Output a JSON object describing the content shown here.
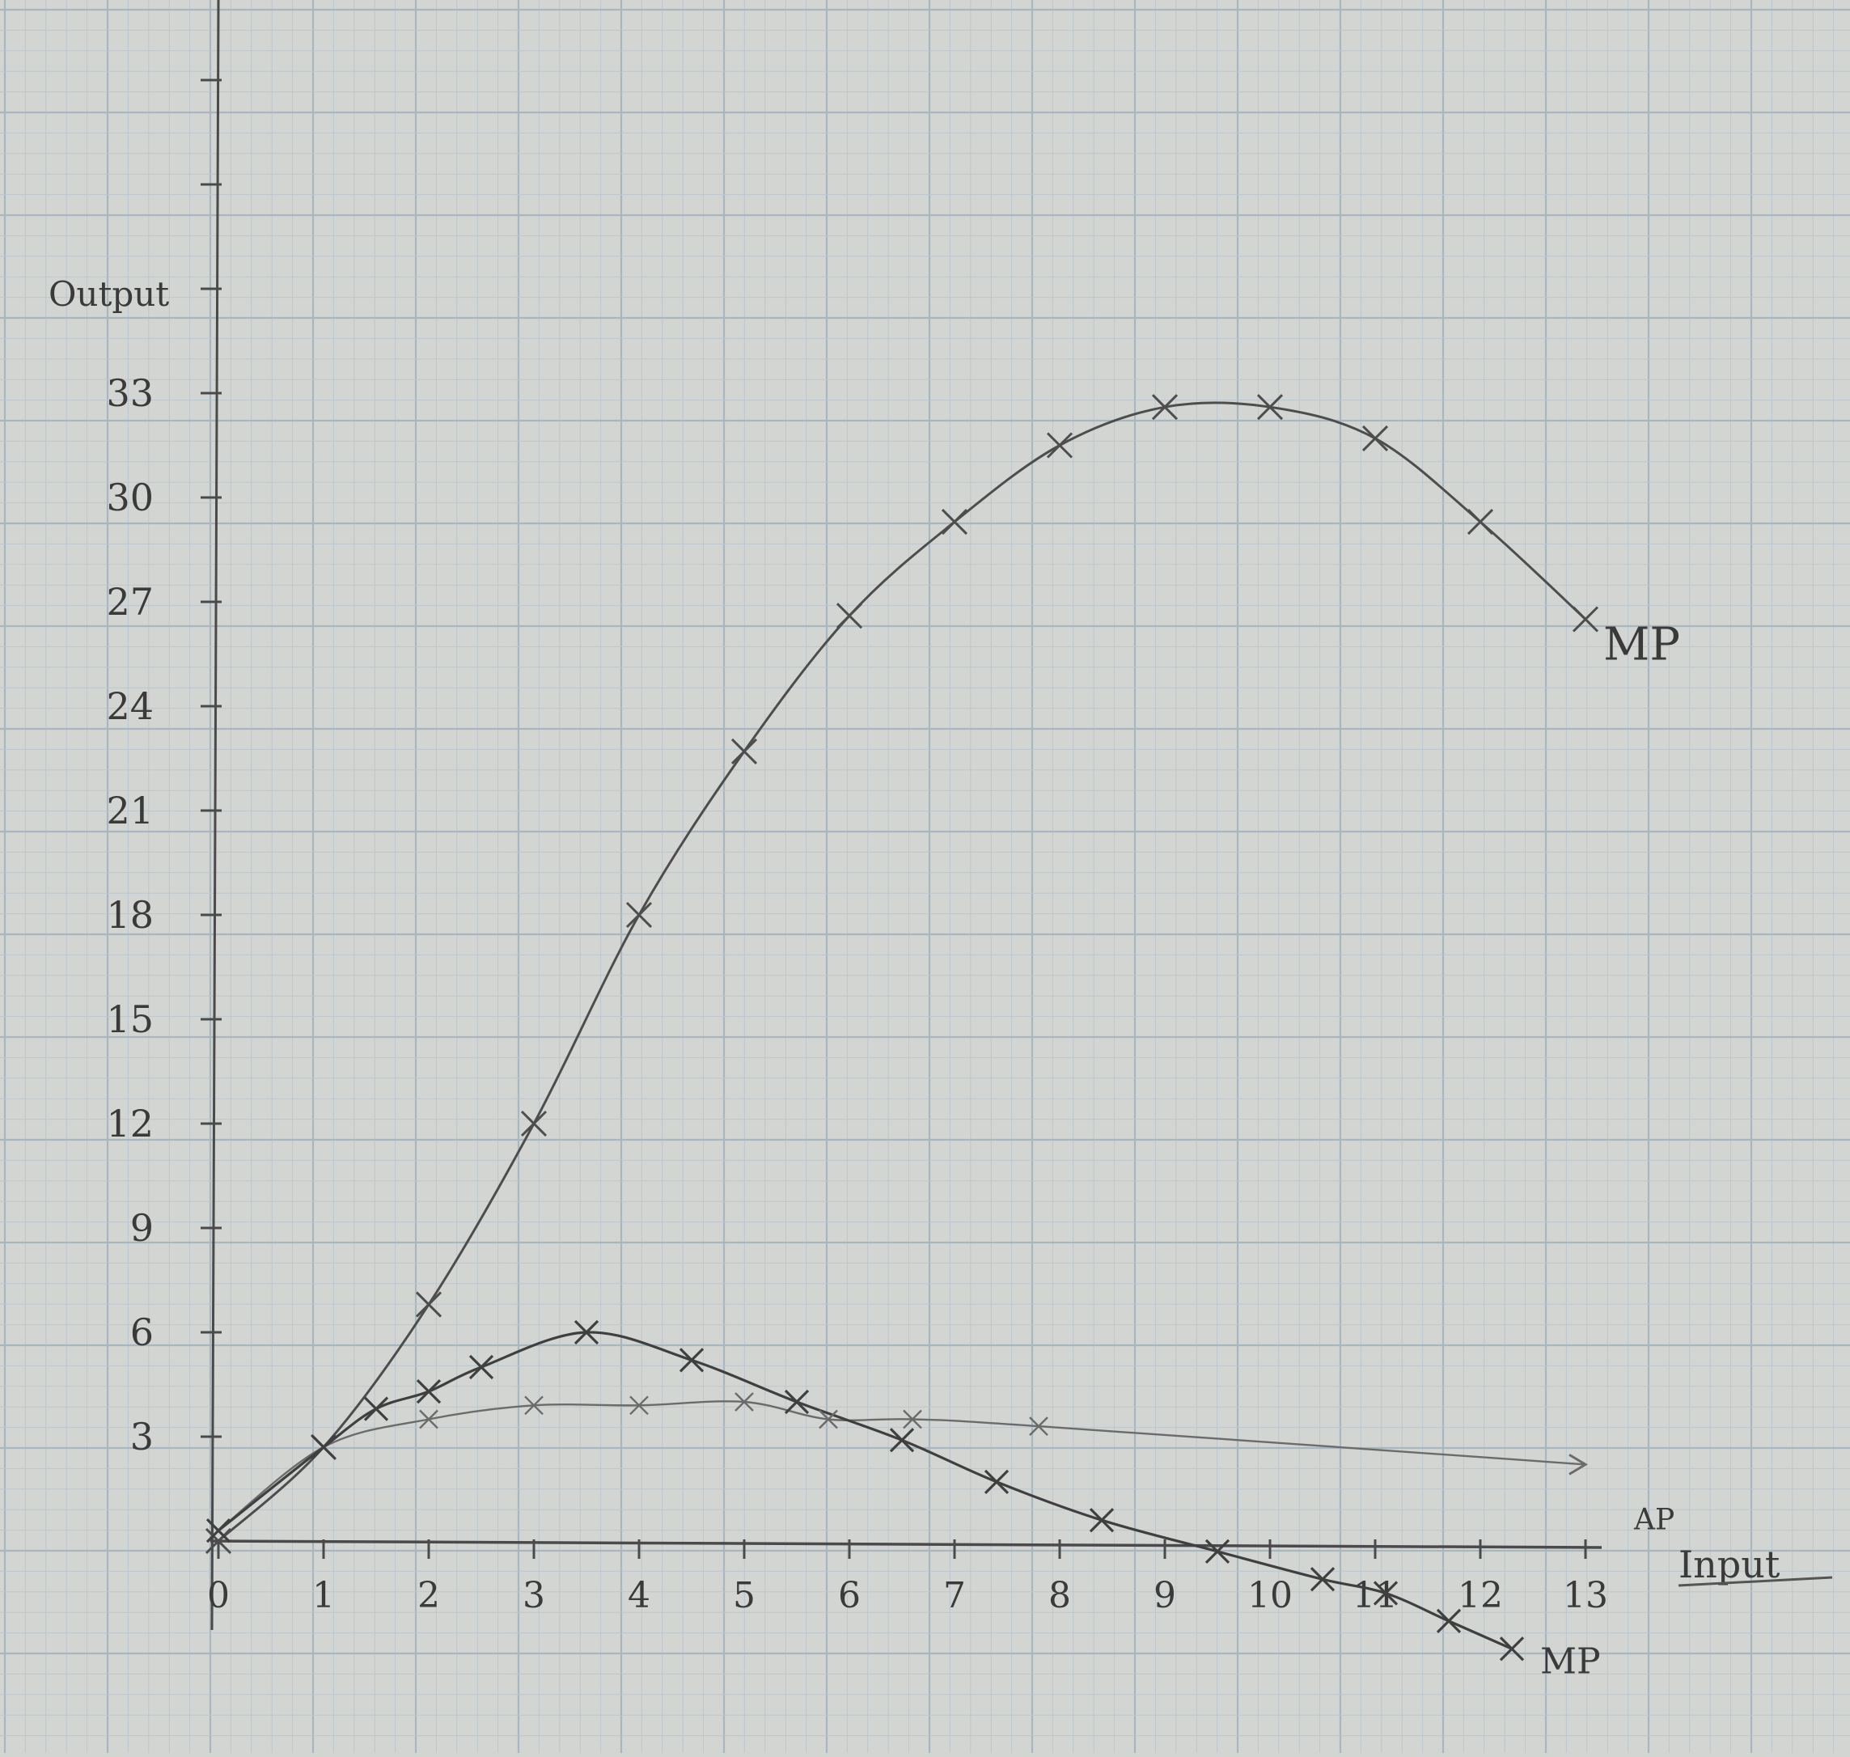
{
  "chart_data": {
    "type": "line",
    "title": "",
    "xlabel": "Input",
    "ylabel": "Output",
    "xlim": [
      0,
      13
    ],
    "ylim": [
      -3,
      33
    ],
    "x_ticks": [
      "0",
      "1",
      "2",
      "3",
      "4",
      "5",
      "6",
      "7",
      "8",
      "9",
      "10",
      "11",
      "12",
      "13"
    ],
    "y_ticks": [
      "3",
      "6",
      "9",
      "12",
      "15",
      "18",
      "21",
      "24",
      "27",
      "30",
      "33"
    ],
    "grid": true,
    "legend": "labels at line ends",
    "series": [
      {
        "name": "MP",
        "label_position": "top-right",
        "points": [
          [
            0,
            0
          ],
          [
            1,
            2.7
          ],
          [
            2,
            6.8
          ],
          [
            3,
            12
          ],
          [
            4,
            18
          ],
          [
            5,
            22.7
          ],
          [
            6,
            26.6
          ],
          [
            7,
            29.3
          ],
          [
            8,
            31.5
          ],
          [
            9,
            32.6
          ],
          [
            10,
            32.6
          ],
          [
            11,
            31.7
          ],
          [
            12,
            29.3
          ],
          [
            13,
            26.5
          ]
        ]
      },
      {
        "name": "AP",
        "label_position": "right",
        "points": [
          [
            0,
            0.3
          ],
          [
            1,
            2.7
          ],
          [
            2,
            3.5
          ],
          [
            3,
            3.9
          ],
          [
            4,
            3.9
          ],
          [
            5,
            4
          ],
          [
            5.8,
            3.5
          ],
          [
            6.6,
            3.5
          ],
          [
            7.8,
            3.3
          ],
          [
            13,
            2.2
          ]
        ]
      },
      {
        "name": "MP",
        "label_position": "bottom-right",
        "points": [
          [
            0,
            0.3
          ],
          [
            1,
            2.7
          ],
          [
            1.5,
            3.8
          ],
          [
            2,
            4.3
          ],
          [
            2.5,
            5
          ],
          [
            3.5,
            6
          ],
          [
            4.5,
            5.2
          ],
          [
            5.5,
            4
          ],
          [
            6.5,
            2.9
          ],
          [
            7.4,
            1.7
          ],
          [
            8.4,
            0.6
          ],
          [
            9.5,
            -0.3
          ],
          [
            10.5,
            -1.1
          ],
          [
            11.1,
            -1.5
          ],
          [
            11.7,
            -2.3
          ],
          [
            12.3,
            -3.1
          ]
        ]
      }
    ]
  }
}
